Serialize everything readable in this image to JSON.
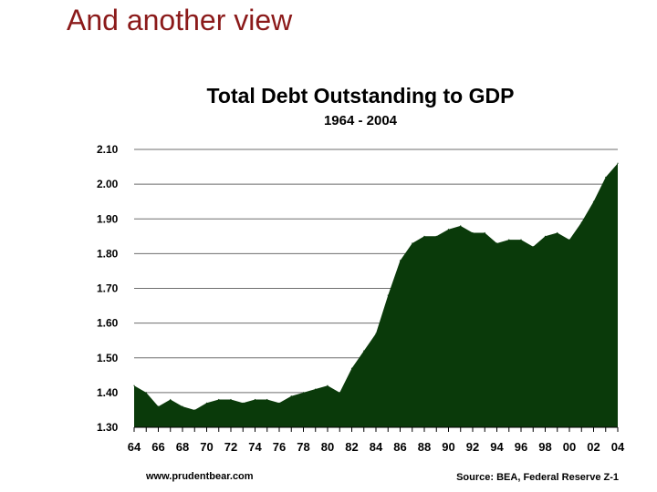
{
  "slide": {
    "title": "And another view"
  },
  "chart_data": {
    "type": "area",
    "title": "Total Debt Outstanding to GDP",
    "subtitle": "1964 -  2004",
    "ylim": [
      1.3,
      2.1
    ],
    "yticks": [
      "2.10",
      "2.00",
      "1.90",
      "1.80",
      "1.70",
      "1.60",
      "1.50",
      "1.40",
      "1.30"
    ],
    "xticks": [
      "64",
      "66",
      "68",
      "70",
      "72",
      "74",
      "76",
      "78",
      "80",
      "82",
      "84",
      "86",
      "88",
      "90",
      "92",
      "94",
      "96",
      "98",
      "00",
      "02",
      "04"
    ],
    "grid": true,
    "fill_color": "#0a3a0a",
    "series": [
      {
        "x": [
          1964,
          1965,
          1966,
          1967,
          1968,
          1969,
          1970,
          1971,
          1972,
          1973,
          1974,
          1975,
          1976,
          1977,
          1978,
          1979,
          1980,
          1981,
          1982,
          1983,
          1984,
          1985,
          1986,
          1987,
          1988,
          1989,
          1990,
          1991,
          1992,
          1993,
          1994,
          1995,
          1996,
          1997,
          1998,
          1999,
          2000,
          2001,
          2002,
          2003,
          2004
        ],
        "values": [
          1.42,
          1.4,
          1.36,
          1.38,
          1.36,
          1.35,
          1.37,
          1.38,
          1.38,
          1.37,
          1.38,
          1.38,
          1.37,
          1.39,
          1.4,
          1.41,
          1.42,
          1.4,
          1.47,
          1.52,
          1.57,
          1.68,
          1.78,
          1.83,
          1.85,
          1.85,
          1.87,
          1.88,
          1.86,
          1.86,
          1.83,
          1.84,
          1.84,
          1.82,
          1.85,
          1.86,
          1.84,
          1.89,
          1.95,
          2.02,
          2.06
        ]
      }
    ]
  },
  "footer": {
    "left": "www.prudentbear.com",
    "right": "Source: BEA, Federal Reserve Z-1"
  }
}
